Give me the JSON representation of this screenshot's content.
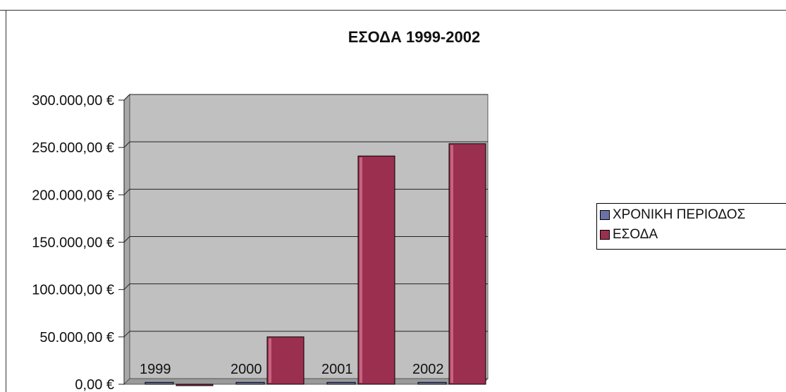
{
  "chart_data": {
    "type": "bar",
    "title": "ΕΣΟΔΑ 1999-2002",
    "categories": [
      "1999",
      "2000",
      "2001",
      "2002"
    ],
    "series": [
      {
        "name": "ΧΡΟΝΙΚΗ ΠΕΡΙΟΔΟΣ",
        "values": [
          1999,
          2000,
          2001,
          2002
        ],
        "color": "#6b72a6"
      },
      {
        "name": "ΕΣΟΔΑ",
        "values": [
          0,
          50000,
          241000,
          254000
        ],
        "color": "#9b2f50"
      }
    ],
    "y_ticks": [
      "300.000,00 €",
      "250.000,00 €",
      "200.000,00 €",
      "150.000,00 €",
      "100.000,00 €",
      "50.000,00 €",
      "0,00 €"
    ],
    "y_tick_values": [
      300000,
      250000,
      200000,
      150000,
      100000,
      50000,
      0
    ],
    "ylim": [
      0,
      300000
    ],
    "xlabel": "",
    "ylabel": "",
    "grid": true,
    "legend_position": "right",
    "plot_background": "#c0c0c0"
  }
}
